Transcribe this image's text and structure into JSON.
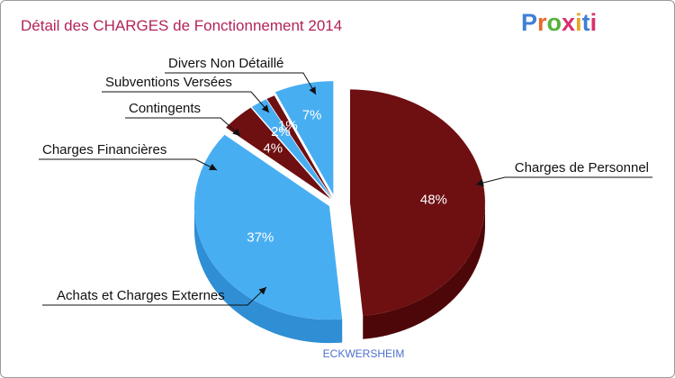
{
  "logo": {
    "text": "Proxiti",
    "letter_colors": [
      "#3f7fd6",
      "#e8692a",
      "#55b33b",
      "#d9316e",
      "#e9a421",
      "#3f7fd6",
      "#d9316e"
    ]
  },
  "colors": {
    "blue": "#48aef2",
    "blue_dark": "#2f8ed4",
    "red": "#6e0f12",
    "red_dark": "#4e0708"
  },
  "chart_data": {
    "type": "pie",
    "title": "Détail des CHARGES de Fonctionnement 2014",
    "subtitle": "ECKWERSHEIM",
    "slices": [
      {
        "label": "Charges de Personnel",
        "value": 48,
        "display": "48%",
        "color": "red"
      },
      {
        "label": "Achats et Charges Externes",
        "value": 37,
        "display": "37%",
        "color": "blue"
      },
      {
        "label": "Charges Financières",
        "value": 4,
        "display": "4%",
        "color": "red"
      },
      {
        "label": "Contingents",
        "value": 2,
        "display": "2%",
        "color": "blue"
      },
      {
        "label": "Subventions Versées",
        "value": 1,
        "display": "1%",
        "color": "red"
      },
      {
        "label": "Divers Non Détaillé",
        "value": 7,
        "display": "7%",
        "color": "blue"
      }
    ]
  }
}
